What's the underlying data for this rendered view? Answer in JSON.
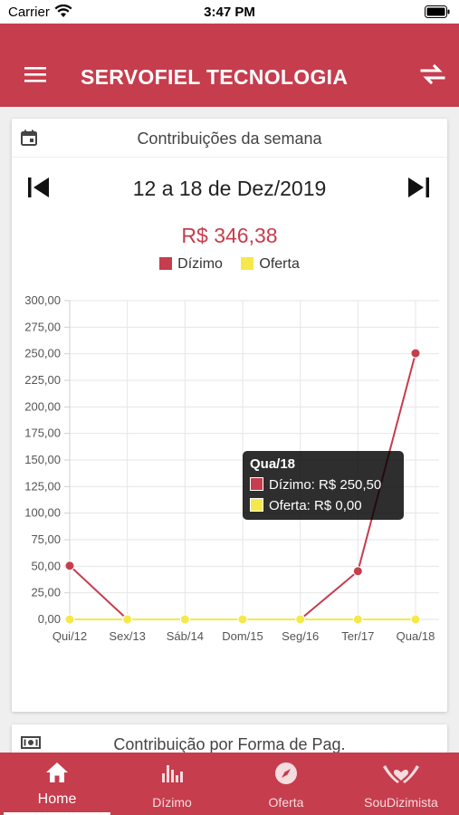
{
  "status_bar": {
    "carrier": "Carrier",
    "time": "3:47 PM"
  },
  "app_bar": {
    "title": "SERVOFIEL TECNOLOGIA"
  },
  "week_card": {
    "title": "Contribuições da semana",
    "range": "12 a 18 de Dez/2019",
    "total": "R$ 346,38"
  },
  "second_card": {
    "title": "Contribuição por Forma de Pag."
  },
  "tooltip": {
    "title": "Qua/18",
    "dizimo": "Dízimo: R$ 250,50",
    "oferta": "Oferta: R$ 0,00"
  },
  "chart_data": {
    "type": "line",
    "categories": [
      "Qui/12",
      "Sex/13",
      "Sáb/14",
      "Dom/15",
      "Seg/16",
      "Ter/17",
      "Qua/18"
    ],
    "series": [
      {
        "name": "Dízimo",
        "color": "#c63d4d",
        "values": [
          50.5,
          0,
          0,
          0,
          0,
          45.38,
          250.5
        ]
      },
      {
        "name": "Oferta",
        "color": "#f5e84a",
        "values": [
          0,
          0,
          0,
          0,
          0,
          0,
          0
        ]
      }
    ],
    "ylim": [
      0,
      300
    ],
    "yticks": [
      "0,00",
      "25,00",
      "50,00",
      "75,00",
      "100,00",
      "125,00",
      "150,00",
      "175,00",
      "200,00",
      "225,00",
      "250,00",
      "275,00",
      "300,00"
    ],
    "grid": true,
    "legend": "top-center"
  },
  "bottom_nav": [
    {
      "label": "Home",
      "icon": "home-icon",
      "active": true
    },
    {
      "label": "Dízimo",
      "icon": "bar-chart-icon",
      "active": false
    },
    {
      "label": "Oferta",
      "icon": "compass-icon",
      "active": false
    },
    {
      "label": "SouDizimista",
      "icon": "hands-heart-icon",
      "active": false
    }
  ]
}
